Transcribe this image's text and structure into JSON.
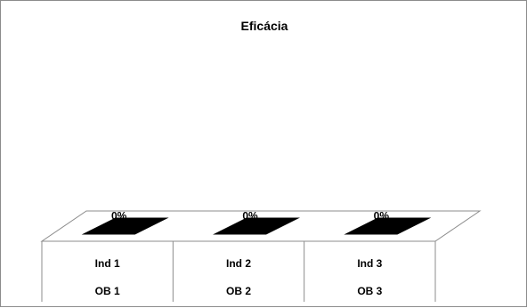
{
  "chart_data": {
    "type": "bar",
    "title": "Eficácia",
    "categories": [
      [
        "Ind  1",
        "OB 1"
      ],
      [
        "Ind  2",
        "OB 2"
      ],
      [
        "Ind  3",
        "OB 3"
      ]
    ],
    "values": [
      0,
      0,
      0
    ],
    "data_labels": [
      "0%",
      "0%",
      "0%"
    ],
    "ylim": [
      0,
      1
    ],
    "grid": false,
    "legend": "none",
    "bar_color": "#000000",
    "floor_color": "#ffffff",
    "line_color": "#8c8c8c"
  }
}
